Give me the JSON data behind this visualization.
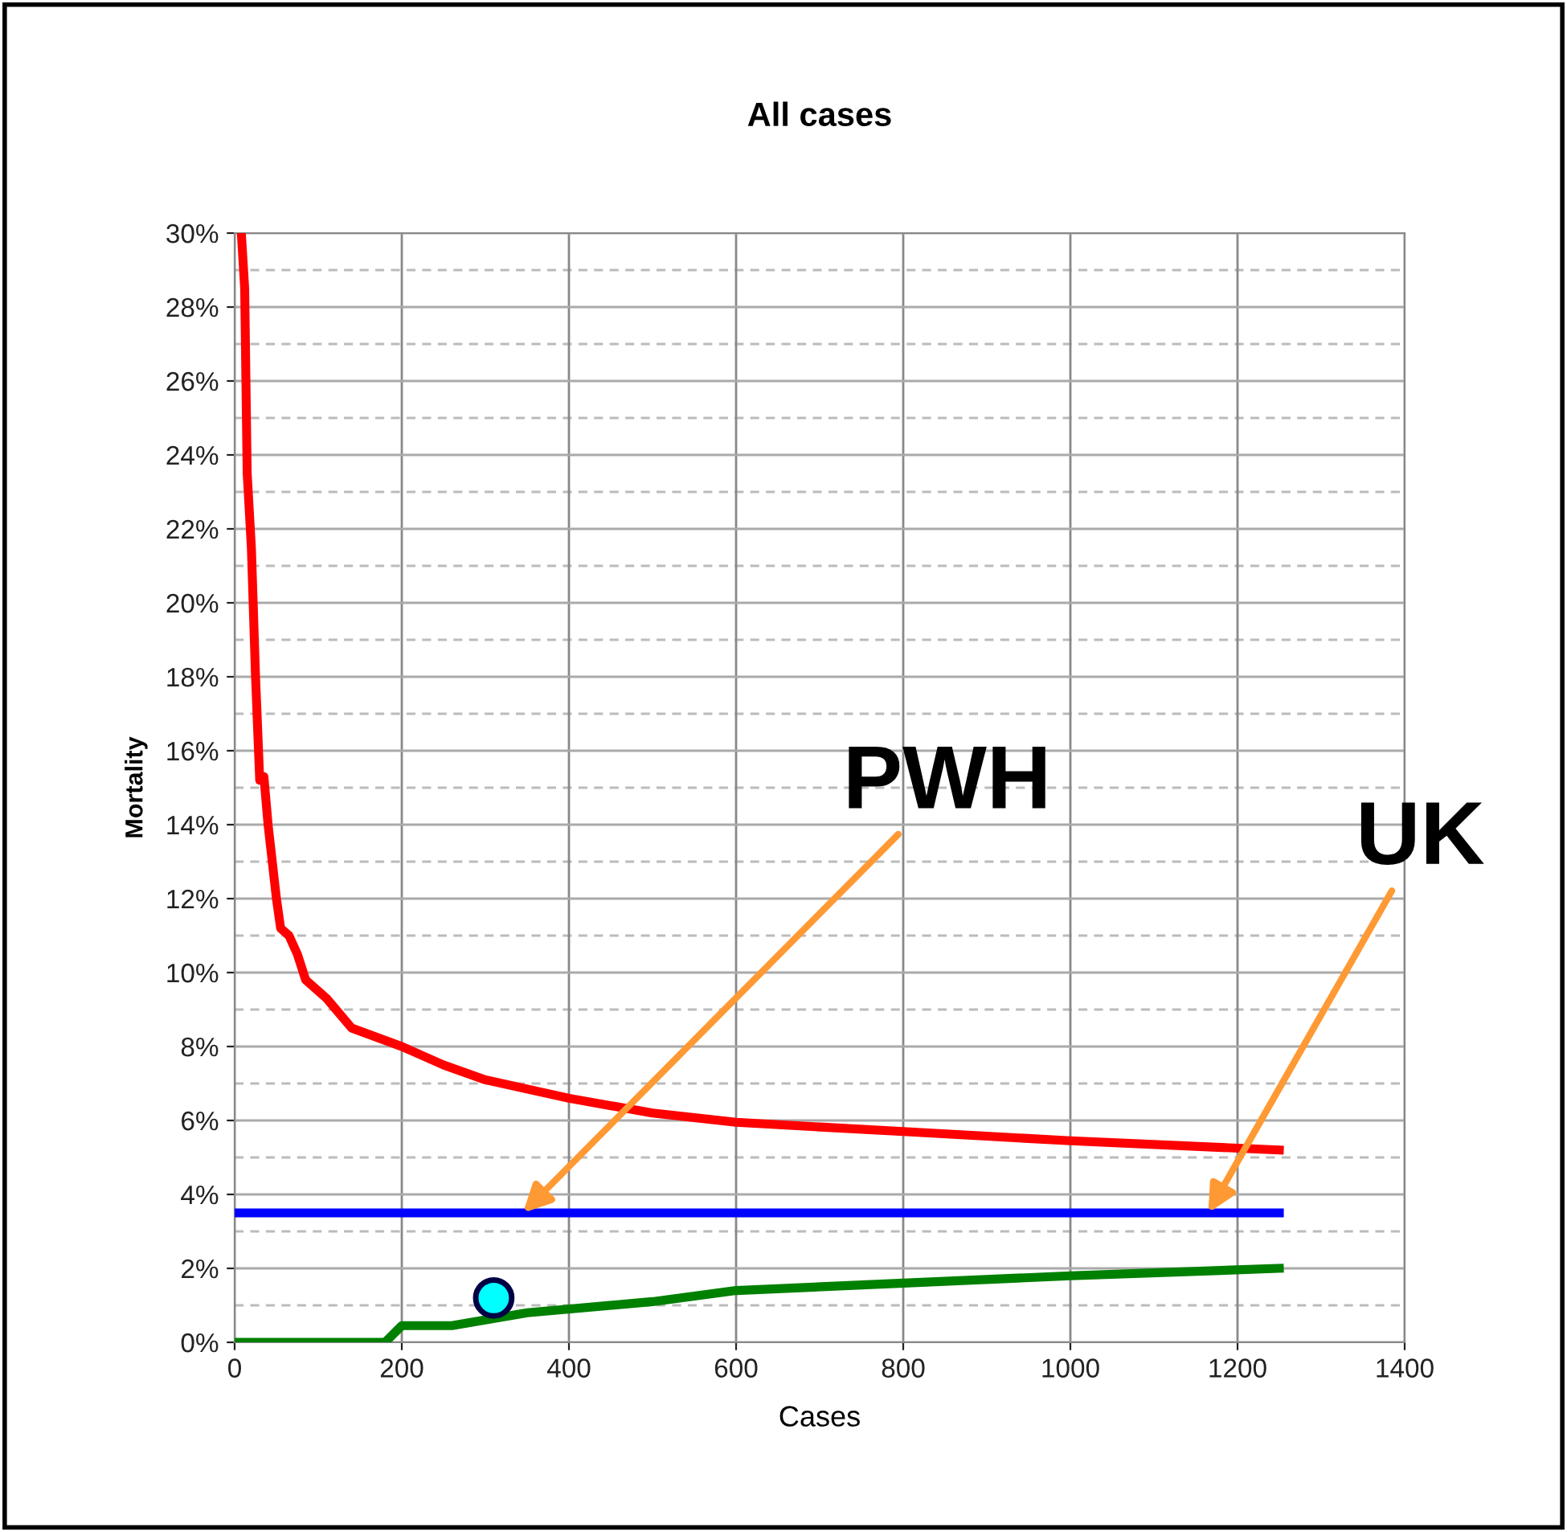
{
  "chart_data": {
    "type": "line",
    "title": "All cases",
    "xlabel": "Cases",
    "ylabel": "Mortality",
    "xlim": [
      0,
      1400
    ],
    "xticks": [
      0,
      200,
      400,
      600,
      800,
      1000,
      1200,
      1400
    ],
    "ylim": [
      0,
      30
    ],
    "yticks": [
      {
        "value": 0,
        "label": "0%"
      },
      {
        "value": 2,
        "label": "2%"
      },
      {
        "value": 4,
        "label": "4%"
      },
      {
        "value": 6,
        "label": "6%"
      },
      {
        "value": 8,
        "label": "8%"
      },
      {
        "value": 10,
        "label": "10%"
      },
      {
        "value": 12,
        "label": "12%"
      },
      {
        "value": 14,
        "label": "14%"
      },
      {
        "value": 16,
        "label": "16%"
      },
      {
        "value": 18,
        "label": "18%"
      },
      {
        "value": 20,
        "label": "20%"
      },
      {
        "value": 22,
        "label": "22%"
      },
      {
        "value": 24,
        "label": "24%"
      },
      {
        "value": 26,
        "label": "26%"
      },
      {
        "value": 28,
        "label": "28%"
      },
      {
        "value": 30,
        "label": "30%"
      }
    ],
    "grid": true,
    "series": [
      {
        "color": "#ff0000",
        "x": [
          8,
          12,
          15,
          20,
          25,
          30,
          35,
          40,
          45,
          50,
          55,
          65,
          75,
          85,
          110,
          140,
          200,
          250,
          300,
          400,
          500,
          600,
          800,
          1000,
          1250
        ],
        "values": [
          30,
          28.5,
          23.5,
          21.5,
          18,
          15.2,
          15.3,
          14,
          13,
          12,
          11.2,
          11,
          10.5,
          9.8,
          9.3,
          8.5,
          8.0,
          7.5,
          7.1,
          6.6,
          6.2,
          5.95,
          5.7,
          5.45,
          5.2
        ]
      },
      {
        "color": "#0000ff",
        "x": [
          0,
          1250
        ],
        "values": [
          3.5,
          3.5
        ]
      },
      {
        "color": "#008000",
        "x": [
          0,
          180,
          200,
          260,
          350,
          500,
          600,
          800,
          1000,
          1250
        ],
        "values": [
          0,
          0,
          0.45,
          0.45,
          0.8,
          1.1,
          1.4,
          1.6,
          1.8,
          2.0
        ]
      },
      {
        "type": "scatter",
        "color": "#00ffff",
        "marker": "circle",
        "x": [
          310
        ],
        "values": [
          1.2
        ]
      }
    ],
    "annotations": [
      {
        "text": "PWH",
        "x": 345,
        "y": 3.5
      },
      {
        "text": "UK",
        "x": 1165,
        "y": 3.5
      }
    ]
  }
}
